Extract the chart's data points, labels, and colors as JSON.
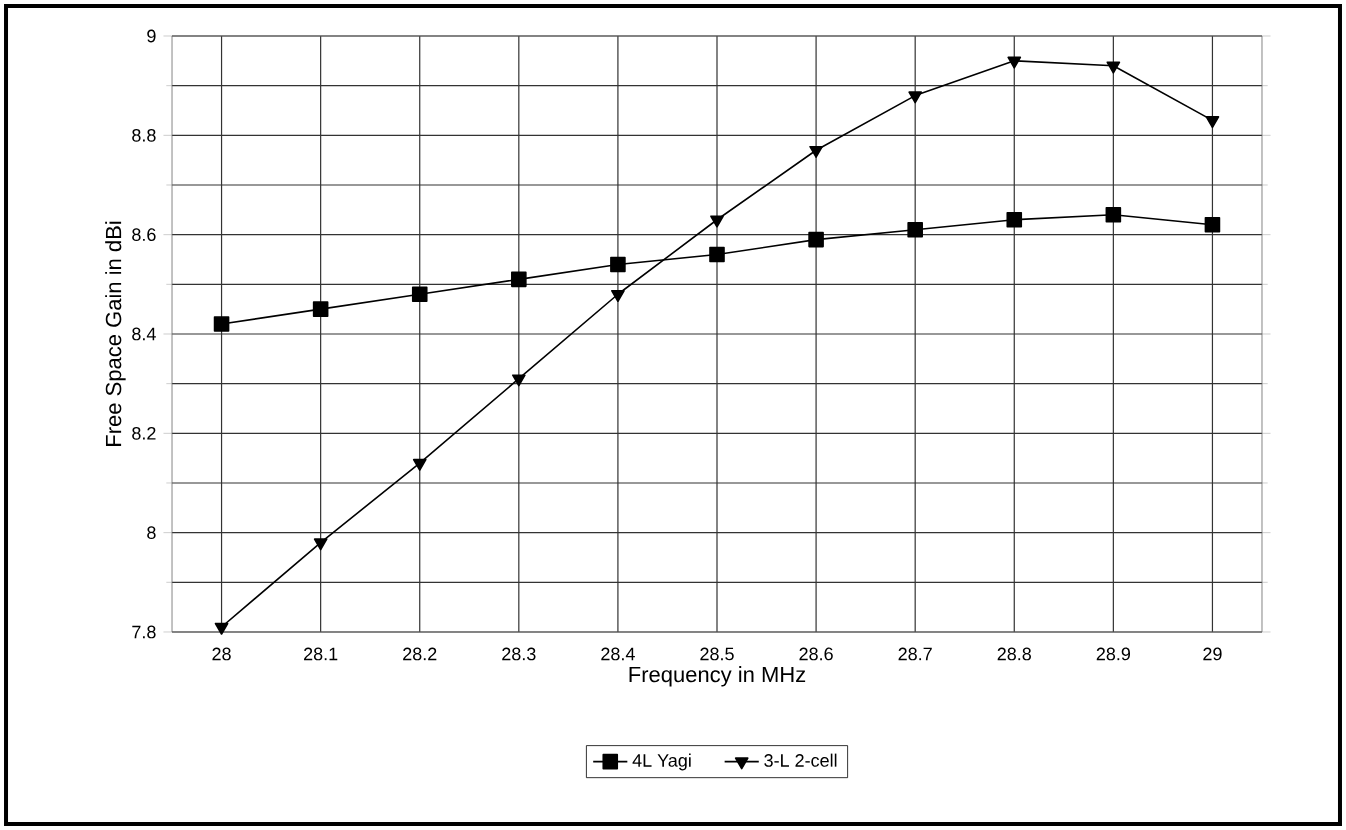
{
  "chart_data": {
    "type": "line",
    "xlabel": "Frequency in MHz",
    "ylabel": "Free Space Gain in dBi",
    "x": [
      28,
      28.1,
      28.2,
      28.3,
      28.4,
      28.5,
      28.6,
      28.7,
      28.8,
      28.9,
      29
    ],
    "series": [
      {
        "name": "4L Yagi",
        "color": "#000000",
        "marker": "square",
        "values": [
          8.42,
          8.45,
          8.48,
          8.51,
          8.54,
          8.56,
          8.59,
          8.61,
          8.63,
          8.64,
          8.62
        ]
      },
      {
        "name": "3-L 2-cell",
        "color": "#000000",
        "marker": "triangle",
        "values": [
          7.81,
          7.98,
          8.14,
          8.31,
          8.48,
          8.63,
          8.77,
          8.88,
          8.95,
          8.94,
          8.83
        ]
      }
    ],
    "xlim": [
      27.95,
      29.05
    ],
    "ylim": [
      7.8,
      9
    ],
    "xticks": [
      28,
      28.1,
      28.2,
      28.3,
      28.4,
      28.5,
      28.6,
      28.7,
      28.8,
      28.9,
      29
    ],
    "yticks": [
      7.8,
      8,
      8.2,
      8.4,
      8.6,
      8.8,
      9
    ],
    "grid": true,
    "legend": "bottom",
    "line_style": "solid"
  }
}
